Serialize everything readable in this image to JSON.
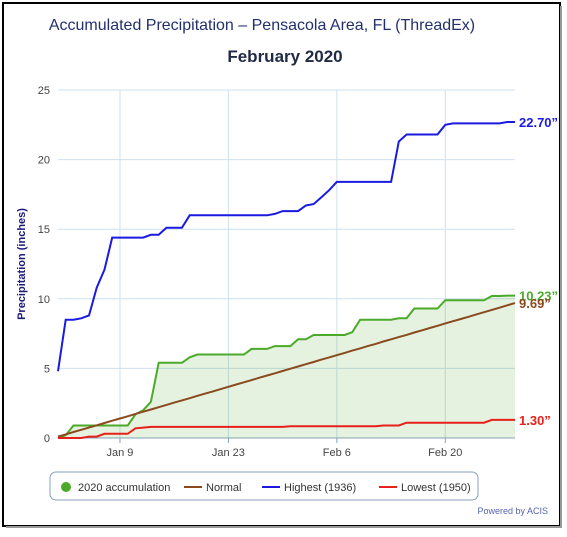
{
  "chart_data": {
    "type": "line",
    "title": "Accumulated Precipitation – Pensacola Area, FL (ThreadEx)",
    "subtitle": "February 2020",
    "y_label": "Precipitation (inches)",
    "credit": "Powered by ACIS",
    "x": [
      1,
      2,
      3,
      4,
      5,
      6,
      7,
      8,
      9,
      10,
      11,
      12,
      13,
      14,
      15,
      16,
      17,
      18,
      19,
      20,
      21,
      22,
      23,
      24,
      25,
      26,
      27,
      28,
      29,
      30,
      31,
      32,
      33,
      34,
      35,
      36,
      37,
      38,
      39,
      40,
      41,
      42,
      43,
      44,
      45,
      46,
      47,
      48,
      49,
      50,
      51,
      52,
      53,
      54,
      55,
      56,
      57,
      58,
      59,
      60
    ],
    "xlim": [
      1,
      60
    ],
    "xticks": [
      {
        "value": 9,
        "label": "Jan 9"
      },
      {
        "value": 23,
        "label": "Jan 23"
      },
      {
        "value": 37,
        "label": "Feb 6"
      },
      {
        "value": 51,
        "label": "Feb 20"
      }
    ],
    "ylim": [
      0,
      25
    ],
    "yticks": [
      0,
      5,
      10,
      15,
      20,
      25
    ],
    "grid": true,
    "series": [
      {
        "name": "2020 accumulation",
        "color": "#4caa2a",
        "area": true,
        "marker": "circle",
        "end_label": "10.23”",
        "values": [
          0,
          0.2,
          0.9,
          0.9,
          0.9,
          0.9,
          0.9,
          0.9,
          0.9,
          0.9,
          1.7,
          2.0,
          2.6,
          5.4,
          5.4,
          5.4,
          5.4,
          5.8,
          6.0,
          6.0,
          6.0,
          6.0,
          6.0,
          6.0,
          6.0,
          6.4,
          6.4,
          6.4,
          6.6,
          6.6,
          6.6,
          7.1,
          7.1,
          7.4,
          7.4,
          7.4,
          7.4,
          7.4,
          7.6,
          8.5,
          8.5,
          8.5,
          8.5,
          8.5,
          8.6,
          8.6,
          9.3,
          9.3,
          9.3,
          9.3,
          9.9,
          9.9,
          9.9,
          9.9,
          9.9,
          9.9,
          10.2,
          10.2,
          10.23,
          10.23
        ]
      },
      {
        "name": "Normal",
        "color": "#8b4a1e",
        "end_label": "9.69”",
        "values": [
          0.1,
          0.26,
          0.43,
          0.59,
          0.75,
          0.91,
          1.08,
          1.24,
          1.4,
          1.56,
          1.73,
          1.89,
          2.05,
          2.21,
          2.38,
          2.54,
          2.7,
          2.86,
          3.03,
          3.19,
          3.35,
          3.51,
          3.68,
          3.84,
          4.0,
          4.16,
          4.33,
          4.49,
          4.65,
          4.81,
          4.98,
          5.14,
          5.3,
          5.46,
          5.63,
          5.79,
          5.95,
          6.11,
          6.28,
          6.44,
          6.6,
          6.76,
          6.93,
          7.09,
          7.25,
          7.41,
          7.58,
          7.74,
          7.9,
          8.06,
          8.23,
          8.39,
          8.55,
          8.71,
          8.88,
          9.04,
          9.2,
          9.36,
          9.53,
          9.69
        ]
      },
      {
        "name": "Highest (1936)",
        "color": "#1a1ae0",
        "end_label": "22.70”",
        "values": [
          4.8,
          8.5,
          8.5,
          8.6,
          8.8,
          10.8,
          12.1,
          14.4,
          14.4,
          14.4,
          14.4,
          14.4,
          14.6,
          14.6,
          15.1,
          15.1,
          15.1,
          16.0,
          16.0,
          16.0,
          16.0,
          16.0,
          16.0,
          16.0,
          16.0,
          16.0,
          16.0,
          16.0,
          16.1,
          16.3,
          16.3,
          16.3,
          16.7,
          16.8,
          17.3,
          17.8,
          18.4,
          18.4,
          18.4,
          18.4,
          18.4,
          18.4,
          18.4,
          18.4,
          21.3,
          21.8,
          21.8,
          21.8,
          21.8,
          21.8,
          22.5,
          22.6,
          22.6,
          22.6,
          22.6,
          22.6,
          22.6,
          22.6,
          22.7,
          22.7
        ]
      },
      {
        "name": "Lowest (1950)",
        "color": "#e8201a",
        "end_label": "1.30”",
        "values": [
          0,
          0,
          0,
          0,
          0.1,
          0.1,
          0.3,
          0.3,
          0.3,
          0.3,
          0.7,
          0.75,
          0.8,
          0.8,
          0.8,
          0.8,
          0.8,
          0.8,
          0.8,
          0.8,
          0.8,
          0.8,
          0.8,
          0.8,
          0.8,
          0.8,
          0.8,
          0.8,
          0.8,
          0.8,
          0.85,
          0.85,
          0.85,
          0.85,
          0.85,
          0.85,
          0.85,
          0.85,
          0.85,
          0.85,
          0.85,
          0.85,
          0.9,
          0.9,
          0.9,
          1.1,
          1.1,
          1.1,
          1.1,
          1.1,
          1.1,
          1.1,
          1.1,
          1.1,
          1.1,
          1.1,
          1.3,
          1.3,
          1.3,
          1.3
        ]
      }
    ]
  }
}
